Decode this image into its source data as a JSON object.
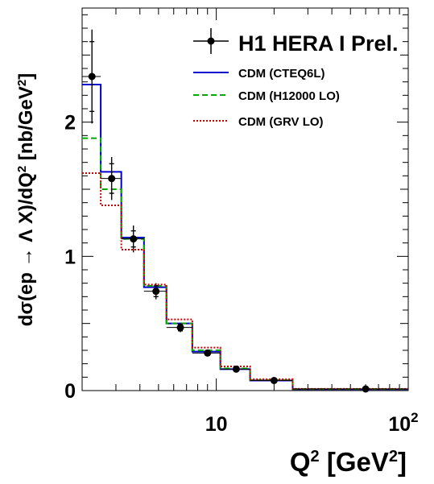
{
  "chart_data": {
    "type": "line",
    "xlabel": "Q² [GeV²]",
    "ylabel": "dσ(ep → Λ X)/dQ² [nb/GeV²]",
    "xscale": "log",
    "xlim": [
      2,
      100
    ],
    "ylim": [
      0,
      2.85
    ],
    "x_ticks": [
      {
        "value": 10,
        "label": "10"
      },
      {
        "value": 100,
        "label": "10",
        "sup": "2"
      }
    ],
    "y_ticks": [
      {
        "value": 0,
        "label": "0"
      },
      {
        "value": 1,
        "label": "1"
      },
      {
        "value": 2,
        "label": "2"
      }
    ],
    "legend_position": "top-right",
    "bin_edges": [
      2,
      2.5,
      3.2,
      4.2,
      5.5,
      7.5,
      10.5,
      15,
      25,
      100
    ],
    "data": {
      "name": "H1 HERA I Prel.",
      "x": [
        2.25,
        2.85,
        3.7,
        4.85,
        6.5,
        9.0,
        12.7,
        20,
        60
      ],
      "y": [
        2.34,
        1.58,
        1.13,
        0.74,
        0.47,
        0.28,
        0.16,
        0.075,
        0.012
      ],
      "err_stat": [
        0.26,
        0.11,
        0.06,
        0.04,
        0.025,
        0.018,
        0.01,
        0.006,
        0.002
      ],
      "err_tot": [
        0.35,
        0.16,
        0.1,
        0.06,
        0.035,
        0.025,
        0.014,
        0.009,
        0.003
      ]
    },
    "series": [
      {
        "name": "CDM (CTEQ6L)",
        "color": "#0000cc",
        "dash": "solid",
        "values": [
          2.28,
          1.63,
          1.14,
          0.77,
          0.5,
          0.29,
          0.16,
          0.075,
          0.01
        ]
      },
      {
        "name": "CDM (H12000 LO)",
        "color": "#00aa00",
        "dash": "dashed",
        "values": [
          1.88,
          1.5,
          1.13,
          0.78,
          0.5,
          0.3,
          0.165,
          0.078,
          0.011
        ]
      },
      {
        "name": "CDM (GRV LO)",
        "color": "#cc0000",
        "dash": "dotted",
        "values": [
          1.62,
          1.38,
          1.05,
          0.79,
          0.53,
          0.32,
          0.18,
          0.085,
          0.013
        ]
      }
    ]
  }
}
